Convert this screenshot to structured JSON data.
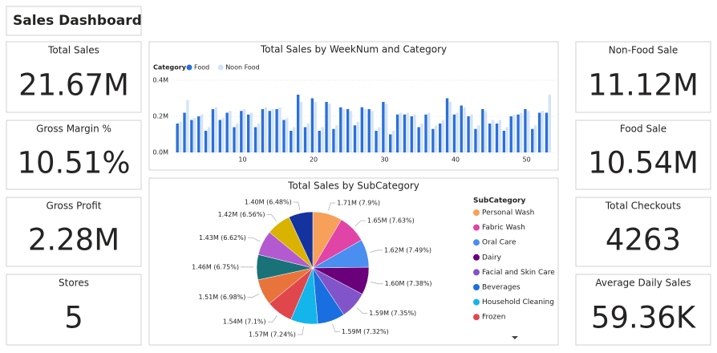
{
  "header": {
    "title": "Sales Dashboard"
  },
  "kpis": [
    {
      "label": "Total Sales",
      "value": "21.67M"
    },
    {
      "label": "Gross Margin %",
      "value": "10.51%"
    },
    {
      "label": "Gross Profit",
      "value": "2.28M"
    },
    {
      "label": "Stores",
      "value": "5"
    },
    {
      "label": "Non-Food Sale",
      "value": "11.12M"
    },
    {
      "label": "Food Sale",
      "value": "10.54M"
    },
    {
      "label": "Total Checkouts",
      "value": "4263"
    },
    {
      "label": "Average Daily Sales",
      "value": "59.36K"
    }
  ],
  "chart_data": [
    {
      "type": "bar",
      "title": "Total Sales by WeekNum and Category",
      "legend_title": "Category",
      "x": [
        1,
        2,
        3,
        4,
        5,
        6,
        7,
        8,
        9,
        10,
        11,
        12,
        13,
        14,
        15,
        16,
        17,
        18,
        19,
        20,
        21,
        22,
        23,
        24,
        25,
        26,
        27,
        28,
        29,
        30,
        31,
        32,
        33,
        34,
        35,
        36,
        37,
        38,
        39,
        40,
        41,
        42,
        43,
        44,
        45,
        46,
        47,
        48,
        49,
        50,
        51,
        52,
        53
      ],
      "xlim": [
        0,
        54
      ],
      "xticks": [
        10,
        20,
        30,
        40,
        50
      ],
      "ylim": [
        0,
        0.4
      ],
      "yticks": [
        {
          "value": 0,
          "label": "0.0M"
        },
        {
          "value": 0.2,
          "label": "0.2M"
        },
        {
          "value": 0.4,
          "label": "0.4M"
        }
      ],
      "grid": true,
      "series": [
        {
          "name": "Food",
          "color": "#2b6fdc",
          "values": [
            0.16,
            0.22,
            0.18,
            0.2,
            0.12,
            0.24,
            0.18,
            0.22,
            0.14,
            0.23,
            0.21,
            0.14,
            0.24,
            0.23,
            0.24,
            0.18,
            0.12,
            0.32,
            0.14,
            0.3,
            0.12,
            0.28,
            0.13,
            0.25,
            0.24,
            0.15,
            0.25,
            0.24,
            0.12,
            0.28,
            0.1,
            0.21,
            0.21,
            0.2,
            0.14,
            0.21,
            0.13,
            0.16,
            0.3,
            0.21,
            0.26,
            0.2,
            0.13,
            0.24,
            0.16,
            0.16,
            0.12,
            0.2,
            0.21,
            0.24,
            0.13,
            0.22,
            0.22
          ]
        },
        {
          "name": "Noon Food",
          "color": "#d3e4f8",
          "values": [
            0.17,
            0.29,
            0.19,
            0.21,
            0.14,
            0.25,
            0.19,
            0.23,
            0.16,
            0.24,
            0.22,
            0.16,
            0.25,
            0.24,
            0.25,
            0.19,
            0.14,
            0.28,
            0.16,
            0.28,
            0.14,
            0.27,
            0.15,
            0.24,
            0.23,
            0.17,
            0.24,
            0.23,
            0.14,
            0.27,
            0.12,
            0.22,
            0.22,
            0.21,
            0.16,
            0.22,
            0.15,
            0.18,
            0.28,
            0.22,
            0.25,
            0.21,
            0.15,
            0.23,
            0.18,
            0.18,
            0.14,
            0.21,
            0.22,
            0.23,
            0.15,
            0.23,
            0.32
          ]
        }
      ]
    },
    {
      "type": "pie",
      "title": "Total Sales by SubCategory",
      "legend_title": "SubCategory",
      "categories": [
        "Personal Wash",
        "Fabric Wash",
        "Oral Care",
        "Dairy",
        "Facial and Skin Care",
        "Beverages",
        "Household Cleaning",
        "Frozen",
        null,
        null,
        null,
        null,
        null
      ],
      "values": [
        1.71,
        1.65,
        1.62,
        1.6,
        1.59,
        1.59,
        1.57,
        1.54,
        1.51,
        1.46,
        1.43,
        1.42,
        1.4
      ],
      "value_labels": [
        "1.71M (7.9%)",
        "1.65M (7.63%)",
        "1.62M (7.49%)",
        "1.60M (7.38%)",
        "1.59M (7.35%)",
        "1.59M (7.32%)",
        "1.57M (7.24%)",
        "1.54M (7.1%)",
        "1.51M (6.98%)",
        "1.46M (6.75%)",
        "1.43M (6.62%)",
        "1.42M (6.56%)",
        "1.40M (6.48%)"
      ],
      "colors": [
        "#f7a05a",
        "#e044a7",
        "#4a8ef0",
        "#6b007b",
        "#8154c9",
        "#1a6fe0",
        "#13b5ea",
        "#e0474c",
        "#e8743c",
        "#197278",
        "#b35ad0",
        "#d9b300",
        "#15339e",
        "#1aab40"
      ]
    }
  ]
}
